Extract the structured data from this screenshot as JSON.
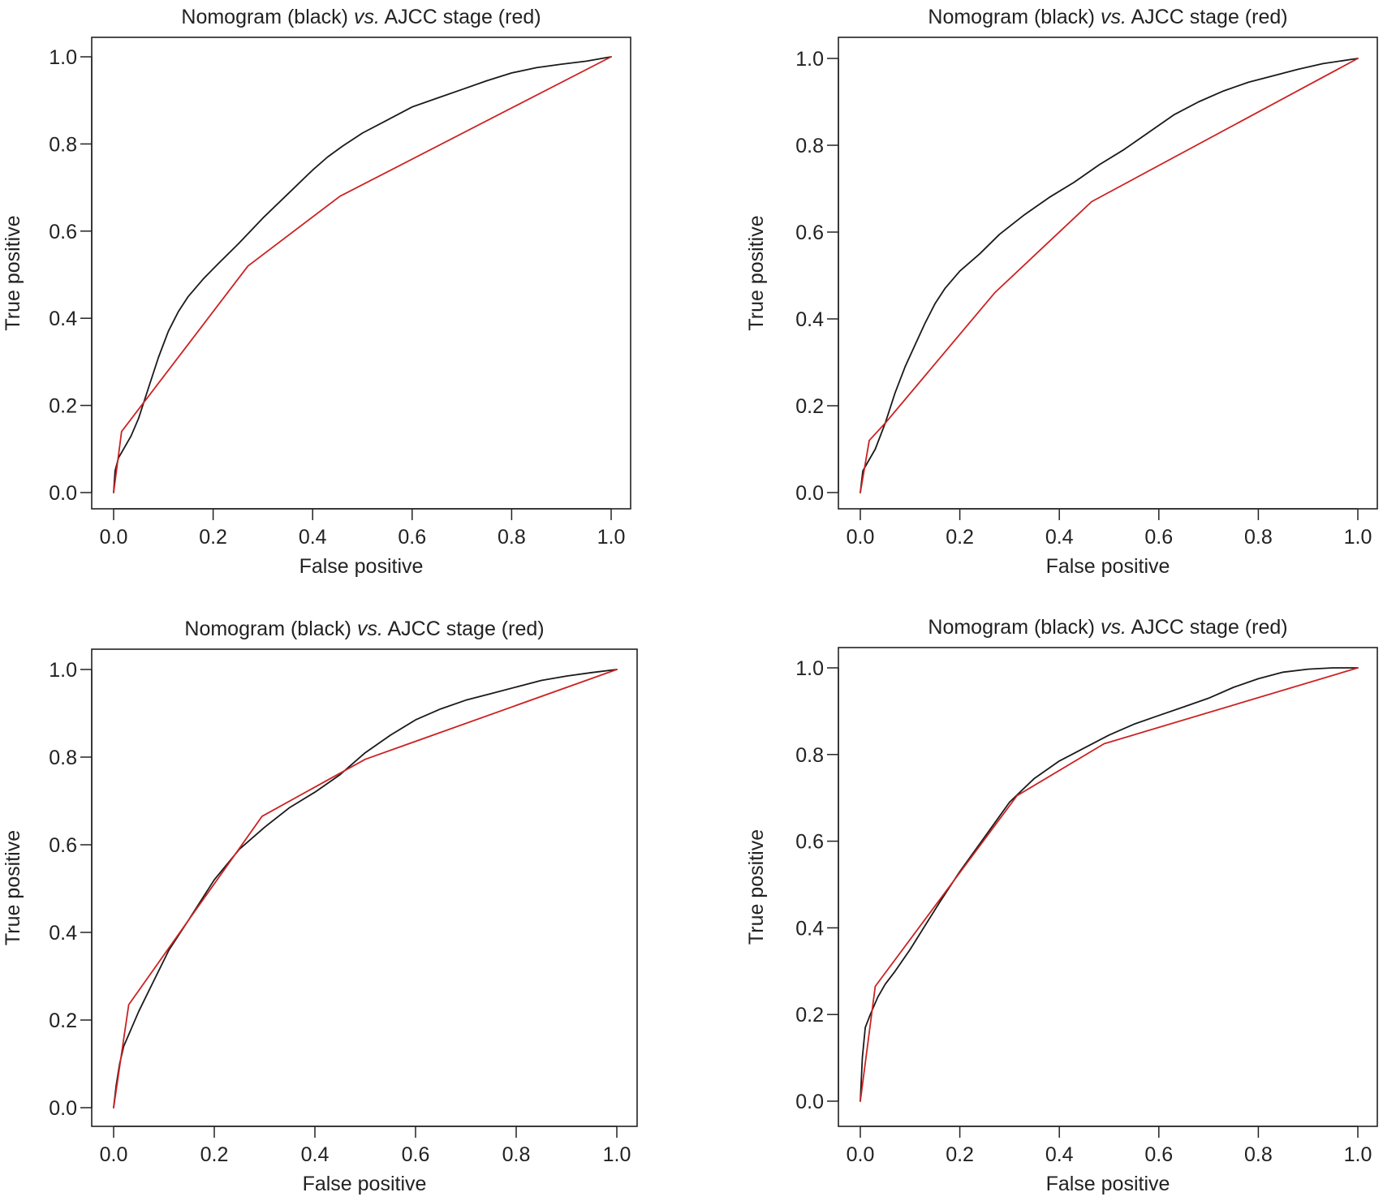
{
  "chart_data": [
    {
      "type": "line",
      "title": {
        "pre": "Nomogram (black) ",
        "italic": "vs.",
        "post": " AJCC stage (red)"
      },
      "xlabel": "False positive",
      "ylabel": "True positive",
      "xlim": [
        0,
        1
      ],
      "ylim": [
        0,
        1
      ],
      "xticks": [
        "0.0",
        "0.2",
        "0.4",
        "0.6",
        "0.8",
        "1.0"
      ],
      "yticks": [
        "0.0",
        "0.2",
        "0.4",
        "0.6",
        "0.8",
        "1.0"
      ],
      "grid": false,
      "series": [
        {
          "color": "#1a1a1a",
          "x": [
            0,
            0.003,
            0.01,
            0.02,
            0.035,
            0.05,
            0.07,
            0.09,
            0.11,
            0.13,
            0.15,
            0.18,
            0.21,
            0.25,
            0.3,
            0.35,
            0.4,
            0.43,
            0.46,
            0.5,
            0.55,
            0.6,
            0.65,
            0.7,
            0.75,
            0.8,
            0.85,
            0.9,
            0.95,
            1.0
          ],
          "y": [
            0,
            0.05,
            0.08,
            0.1,
            0.13,
            0.17,
            0.24,
            0.31,
            0.37,
            0.415,
            0.45,
            0.49,
            0.525,
            0.57,
            0.63,
            0.685,
            0.74,
            0.77,
            0.795,
            0.825,
            0.855,
            0.885,
            0.905,
            0.925,
            0.945,
            0.963,
            0.975,
            0.983,
            0.99,
            1.0
          ]
        },
        {
          "color": "#cc2222",
          "x": [
            0,
            0.016,
            0.27,
            0.455,
            1.0
          ],
          "y": [
            0,
            0.14,
            0.52,
            0.68,
            1.0
          ]
        }
      ]
    },
    {
      "type": "line",
      "title": {
        "pre": "Nomogram (black) ",
        "italic": "vs.",
        "post": " AJCC stage (red)"
      },
      "xlabel": "False positive",
      "ylabel": "True positive",
      "xlim": [
        0,
        1
      ],
      "ylim": [
        0,
        1
      ],
      "xticks": [
        "0.0",
        "0.2",
        "0.4",
        "0.6",
        "0.8",
        "1.0"
      ],
      "yticks": [
        "0.0",
        "0.2",
        "0.4",
        "0.6",
        "0.8",
        "1.0"
      ],
      "grid": false,
      "series": [
        {
          "color": "#1a1a1a",
          "x": [
            0,
            0.005,
            0.015,
            0.03,
            0.05,
            0.07,
            0.09,
            0.11,
            0.13,
            0.15,
            0.17,
            0.2,
            0.24,
            0.28,
            0.33,
            0.38,
            0.43,
            0.48,
            0.53,
            0.58,
            0.63,
            0.68,
            0.73,
            0.78,
            0.83,
            0.88,
            0.93,
            1.0
          ],
          "y": [
            0,
            0.05,
            0.07,
            0.1,
            0.16,
            0.23,
            0.29,
            0.34,
            0.39,
            0.435,
            0.47,
            0.51,
            0.55,
            0.595,
            0.64,
            0.68,
            0.715,
            0.755,
            0.79,
            0.83,
            0.87,
            0.9,
            0.925,
            0.945,
            0.96,
            0.975,
            0.988,
            1.0
          ]
        },
        {
          "color": "#cc2222",
          "x": [
            0,
            0.018,
            0.05,
            0.27,
            0.465,
            1.0
          ],
          "y": [
            0,
            0.12,
            0.16,
            0.46,
            0.67,
            1.0
          ]
        }
      ]
    },
    {
      "type": "line",
      "title": {
        "pre": "Nomogram (black) ",
        "italic": "vs.",
        "post": " AJCC stage (red)"
      },
      "xlabel": "False positive",
      "ylabel": "True positive",
      "xlim": [
        0,
        1
      ],
      "ylim": [
        0,
        1
      ],
      "xticks": [
        "0.0",
        "0.2",
        "0.4",
        "0.6",
        "0.8",
        "1.0"
      ],
      "yticks": [
        "0.0",
        "0.2",
        "0.4",
        "0.6",
        "0.8",
        "1.0"
      ],
      "grid": false,
      "series": [
        {
          "color": "#1a1a1a",
          "x": [
            0,
            0.005,
            0.012,
            0.02,
            0.035,
            0.05,
            0.08,
            0.11,
            0.15,
            0.2,
            0.25,
            0.3,
            0.35,
            0.4,
            0.45,
            0.5,
            0.55,
            0.6,
            0.65,
            0.7,
            0.75,
            0.8,
            0.85,
            0.9,
            0.95,
            1.0
          ],
          "y": [
            0,
            0.05,
            0.1,
            0.14,
            0.18,
            0.22,
            0.29,
            0.36,
            0.43,
            0.52,
            0.59,
            0.64,
            0.685,
            0.72,
            0.76,
            0.81,
            0.85,
            0.885,
            0.91,
            0.93,
            0.945,
            0.96,
            0.975,
            0.985,
            0.993,
            1.0
          ]
        },
        {
          "color": "#cc2222",
          "x": [
            0,
            0.03,
            0.295,
            0.5,
            1.0
          ],
          "y": [
            0,
            0.235,
            0.665,
            0.795,
            1.0
          ]
        }
      ]
    },
    {
      "type": "line",
      "title": {
        "pre": "Nomogram (black) ",
        "italic": "vs.",
        "post": " AJCC stage (red)"
      },
      "xlabel": "False positive",
      "ylabel": "True positive",
      "xlim": [
        0,
        1
      ],
      "ylim": [
        0,
        1
      ],
      "xticks": [
        "0.0",
        "0.2",
        "0.4",
        "0.6",
        "0.8",
        "1.0"
      ],
      "yticks": [
        "0.0",
        "0.2",
        "0.4",
        "0.6",
        "0.8",
        "1.0"
      ],
      "grid": false,
      "series": [
        {
          "color": "#1a1a1a",
          "x": [
            0,
            0.004,
            0.01,
            0.02,
            0.035,
            0.05,
            0.07,
            0.1,
            0.13,
            0.16,
            0.2,
            0.25,
            0.3,
            0.35,
            0.4,
            0.45,
            0.5,
            0.55,
            0.6,
            0.65,
            0.7,
            0.75,
            0.8,
            0.85,
            0.9,
            0.95,
            1.0
          ],
          "y": [
            0,
            0.1,
            0.17,
            0.2,
            0.24,
            0.27,
            0.3,
            0.35,
            0.405,
            0.46,
            0.53,
            0.61,
            0.69,
            0.745,
            0.785,
            0.815,
            0.845,
            0.87,
            0.89,
            0.91,
            0.93,
            0.955,
            0.975,
            0.99,
            0.997,
            1.0,
            1.0
          ]
        },
        {
          "color": "#cc2222",
          "x": [
            0,
            0.03,
            0.315,
            0.49,
            1.0
          ],
          "y": [
            0,
            0.265,
            0.705,
            0.825,
            1.0
          ]
        }
      ]
    }
  ]
}
